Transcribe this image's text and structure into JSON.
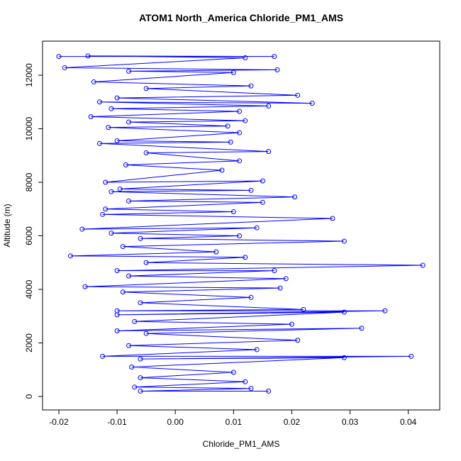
{
  "chart_data": {
    "type": "scatter",
    "title": "ATOM1 North_America Chloride_PM1_AMS",
    "x_label": "Chloride_PM1_AMS",
    "y_label": "Altitude (m)",
    "color": "#0000ff",
    "xlim": [
      -0.0228,
      0.0454
    ],
    "ylim": [
      -503,
      13272
    ],
    "xticks": [
      -0.02,
      -0.01,
      {
        "value": 0,
        "label": "0.00"
      },
      0.01,
      0.02,
      0.03,
      0.04
    ],
    "yticks": [
      0,
      2000,
      4000,
      6000,
      8000,
      10000,
      12000
    ],
    "x": [
      -0.02,
      0.017,
      -0.015,
      0.012,
      -0.019,
      0.0175,
      -0.008,
      0.01,
      -0.014,
      0.013,
      -0.005,
      0.021,
      -0.01,
      0.0235,
      -0.013,
      0.016,
      -0.011,
      0.011,
      -0.0145,
      0.012,
      -0.008,
      0.009,
      -0.0115,
      0.011,
      -0.01,
      0.0095,
      -0.013,
      0.016,
      -0.005,
      0.011,
      -0.0085,
      0.008,
      -0.012,
      0.015,
      -0.0095,
      0.013,
      -0.011,
      0.0205,
      -0.008,
      0.015,
      -0.012,
      0.01,
      -0.0125,
      0.027,
      -0.016,
      0.014,
      -0.011,
      0.011,
      -0.006,
      0.029,
      -0.009,
      0.007,
      -0.018,
      0.012,
      -0.005,
      0.0425,
      -0.01,
      0.017,
      -0.008,
      0.019,
      -0.0155,
      0.018,
      -0.009,
      0.013,
      -0.006,
      0.022,
      -0.01,
      0.036,
      -0.01,
      0.029,
      -0.007,
      0.02,
      -0.01,
      0.032,
      -0.005,
      0.021,
      -0.008,
      0.014,
      -0.0125,
      0.0405,
      -0.006,
      0.029,
      -0.0075,
      0.01,
      -0.006,
      0.012,
      -0.007,
      0.013,
      -0.006,
      0.016
    ],
    "values": [
      12700,
      12700,
      12720,
      12650,
      12280,
      12200,
      12150,
      12100,
      11750,
      11600,
      11500,
      11250,
      11150,
      10950,
      11000,
      10850,
      10750,
      10650,
      10450,
      10300,
      10250,
      10100,
      10050,
      9850,
      9550,
      9500,
      9450,
      9150,
      9100,
      8800,
      8650,
      8450,
      8000,
      8050,
      7750,
      7700,
      7650,
      7450,
      7300,
      7250,
      7000,
      6900,
      6800,
      6650,
      6250,
      6300,
      6100,
      6000,
      5900,
      5800,
      5600,
      5400,
      5250,
      5200,
      5000,
      4900,
      4700,
      4700,
      4500,
      4400,
      4100,
      4050,
      3900,
      3700,
      3500,
      3250,
      3200,
      3200,
      3050,
      3150,
      2800,
      2700,
      2450,
      2550,
      2350,
      2100,
      1900,
      1750,
      1500,
      1500,
      1400,
      1450,
      1100,
      900,
      700,
      550,
      350,
      300,
      200,
      200
    ]
  }
}
